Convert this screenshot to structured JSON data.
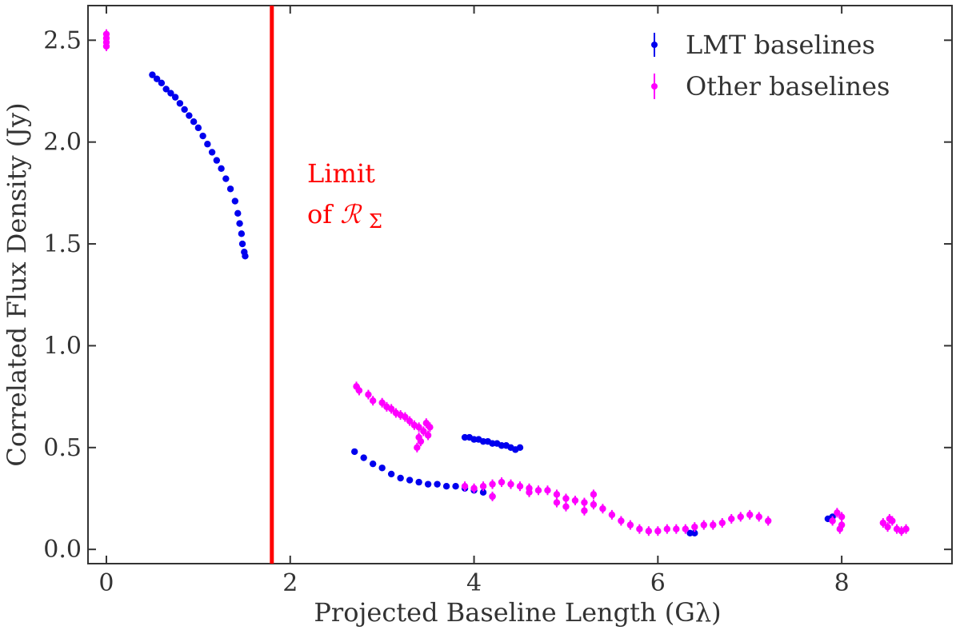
{
  "chart_data": {
    "type": "scatter",
    "xlabel": "Projected Baseline Length (Gλ)",
    "ylabel": "Correlated Flux Density (Jy)",
    "xlim": [
      -0.2,
      9.2
    ],
    "ylim": [
      -0.07,
      2.67
    ],
    "xticks": [
      0,
      2,
      4,
      6,
      8
    ],
    "xtick_labels": [
      "0",
      "2",
      "4",
      "6",
      "8"
    ],
    "yticks": [
      0.0,
      0.5,
      1.0,
      1.5,
      2.0,
      2.5
    ],
    "ytick_labels": [
      "0.0",
      "0.5",
      "1.0",
      "1.5",
      "2.0",
      "2.5"
    ],
    "grid": false,
    "legend_position": "top-right",
    "vline": {
      "x": 1.8,
      "color": "#ff0000"
    },
    "annotation": {
      "line1": "Limit",
      "line2_prefix": "of ",
      "line2_symbol": "ℛ",
      "line2_sub": "Σ",
      "color": "#ff0000"
    },
    "series": [
      {
        "name": "LMT baselines",
        "color": "#0000ee",
        "points": [
          [
            0.5,
            2.33
          ],
          [
            0.55,
            2.31
          ],
          [
            0.6,
            2.29
          ],
          [
            0.65,
            2.26
          ],
          [
            0.7,
            2.24
          ],
          [
            0.75,
            2.22
          ],
          [
            0.8,
            2.19
          ],
          [
            0.85,
            2.16
          ],
          [
            0.9,
            2.13
          ],
          [
            0.95,
            2.1
          ],
          [
            1.0,
            2.07
          ],
          [
            1.05,
            2.03
          ],
          [
            1.1,
            1.99
          ],
          [
            1.15,
            1.95
          ],
          [
            1.2,
            1.91
          ],
          [
            1.25,
            1.87
          ],
          [
            1.3,
            1.82
          ],
          [
            1.35,
            1.77
          ],
          [
            1.4,
            1.71
          ],
          [
            1.43,
            1.65
          ],
          [
            1.45,
            1.6
          ],
          [
            1.47,
            1.55
          ],
          [
            1.48,
            1.5
          ],
          [
            1.5,
            1.46
          ],
          [
            1.51,
            1.44
          ],
          [
            2.7,
            0.48
          ],
          [
            2.8,
            0.45
          ],
          [
            2.9,
            0.42
          ],
          [
            3.0,
            0.4
          ],
          [
            3.1,
            0.37
          ],
          [
            3.2,
            0.35
          ],
          [
            3.3,
            0.34
          ],
          [
            3.4,
            0.33
          ],
          [
            3.5,
            0.32
          ],
          [
            3.6,
            0.32
          ],
          [
            3.7,
            0.31
          ],
          [
            3.8,
            0.31
          ],
          [
            3.9,
            0.3
          ],
          [
            4.0,
            0.29
          ],
          [
            4.1,
            0.28
          ],
          [
            4.2,
            0.26
          ],
          [
            3.9,
            0.55
          ],
          [
            3.95,
            0.55
          ],
          [
            4.0,
            0.54
          ],
          [
            4.05,
            0.54
          ],
          [
            4.1,
            0.53
          ],
          [
            4.15,
            0.53
          ],
          [
            4.2,
            0.52
          ],
          [
            4.25,
            0.52
          ],
          [
            4.3,
            0.51
          ],
          [
            4.35,
            0.51
          ],
          [
            4.4,
            0.5
          ],
          [
            4.45,
            0.49
          ],
          [
            4.5,
            0.5
          ],
          [
            6.35,
            0.08
          ],
          [
            6.4,
            0.08
          ],
          [
            7.85,
            0.15
          ],
          [
            7.9,
            0.16
          ]
        ]
      },
      {
        "name": "Other baselines",
        "color": "#ff00ff",
        "points": [
          [
            0.0,
            2.47
          ],
          [
            0.0,
            2.49
          ],
          [
            0.0,
            2.51
          ],
          [
            0.0,
            2.53
          ],
          [
            2.72,
            0.8
          ],
          [
            2.75,
            0.78
          ],
          [
            2.85,
            0.76
          ],
          [
            2.9,
            0.73
          ],
          [
            3.0,
            0.72
          ],
          [
            3.05,
            0.7
          ],
          [
            3.1,
            0.69
          ],
          [
            3.15,
            0.67
          ],
          [
            3.2,
            0.66
          ],
          [
            3.25,
            0.65
          ],
          [
            3.3,
            0.63
          ],
          [
            3.35,
            0.61
          ],
          [
            3.4,
            0.6
          ],
          [
            3.45,
            0.58
          ],
          [
            3.5,
            0.56
          ],
          [
            3.4,
            0.55
          ],
          [
            3.42,
            0.53
          ],
          [
            3.38,
            0.5
          ],
          [
            3.48,
            0.62
          ],
          [
            3.52,
            0.6
          ],
          [
            3.9,
            0.31
          ],
          [
            4.0,
            0.3
          ],
          [
            4.1,
            0.31
          ],
          [
            4.2,
            0.32
          ],
          [
            4.3,
            0.33
          ],
          [
            4.4,
            0.32
          ],
          [
            4.5,
            0.31
          ],
          [
            4.6,
            0.3
          ],
          [
            4.7,
            0.29
          ],
          [
            4.8,
            0.29
          ],
          [
            4.9,
            0.27
          ],
          [
            5.0,
            0.25
          ],
          [
            5.1,
            0.24
          ],
          [
            5.2,
            0.23
          ],
          [
            5.3,
            0.22
          ],
          [
            5.4,
            0.2
          ],
          [
            5.5,
            0.17
          ],
          [
            5.6,
            0.14
          ],
          [
            5.7,
            0.12
          ],
          [
            5.8,
            0.1
          ],
          [
            5.9,
            0.09
          ],
          [
            6.0,
            0.09
          ],
          [
            6.1,
            0.1
          ],
          [
            6.2,
            0.1
          ],
          [
            6.3,
            0.1
          ],
          [
            6.4,
            0.11
          ],
          [
            6.5,
            0.12
          ],
          [
            6.6,
            0.12
          ],
          [
            6.7,
            0.13
          ],
          [
            6.8,
            0.15
          ],
          [
            6.9,
            0.16
          ],
          [
            7.0,
            0.17
          ],
          [
            7.1,
            0.16
          ],
          [
            7.2,
            0.14
          ],
          [
            5.3,
            0.27
          ],
          [
            5.0,
            0.21
          ],
          [
            5.2,
            0.19
          ],
          [
            4.9,
            0.23
          ],
          [
            4.2,
            0.26
          ],
          [
            4.6,
            0.28
          ],
          [
            7.9,
            0.14
          ],
          [
            7.95,
            0.18
          ],
          [
            8.0,
            0.12
          ],
          [
            7.98,
            0.1
          ],
          [
            8.0,
            0.16
          ],
          [
            8.45,
            0.13
          ],
          [
            8.5,
            0.11
          ],
          [
            8.55,
            0.14
          ],
          [
            8.6,
            0.1
          ],
          [
            8.65,
            0.09
          ],
          [
            8.7,
            0.1
          ],
          [
            8.52,
            0.15
          ]
        ]
      }
    ]
  }
}
